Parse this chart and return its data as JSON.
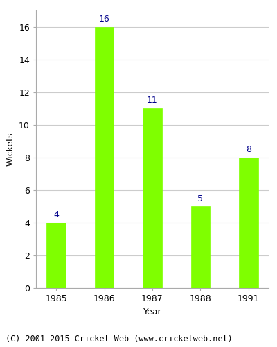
{
  "years": [
    "1985",
    "1986",
    "1987",
    "1988",
    "1991"
  ],
  "values": [
    4,
    16,
    11,
    5,
    8
  ],
  "bar_color": "#7fff00",
  "bar_edge_color": "#7fff00",
  "label_color": "#00008b",
  "xlabel": "Year",
  "ylabel": "Wickets",
  "ylim": [
    0,
    17
  ],
  "yticks": [
    0,
    2,
    4,
    6,
    8,
    10,
    12,
    14,
    16
  ],
  "grid_color": "#cccccc",
  "background_color": "#ffffff",
  "footer_text": "(C) 2001-2015 Cricket Web (www.cricketweb.net)",
  "label_fontsize": 9,
  "axis_fontsize": 9,
  "footer_fontsize": 8.5
}
